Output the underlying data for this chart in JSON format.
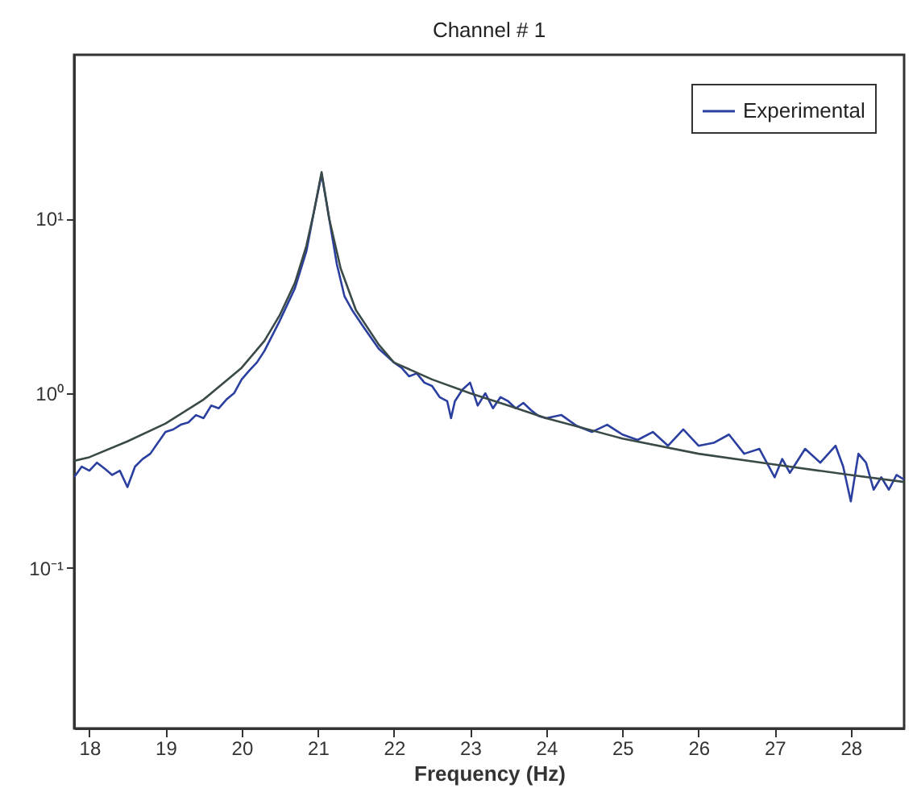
{
  "chart_data": {
    "type": "line",
    "title": "Channel # 1",
    "xlabel": "Frequency (Hz)",
    "log": "y",
    "grid": false,
    "legend": "top right",
    "xlim": [
      17.8,
      28.7
    ],
    "xticks": [
      18,
      19,
      20,
      21,
      22,
      23,
      24,
      25,
      26,
      27,
      28
    ],
    "ylim": [
      0.012,
      87
    ],
    "yticks": [
      {
        "value": 0.1,
        "label": "10⁻¹"
      },
      {
        "value": 1,
        "label": "10⁰"
      },
      {
        "value": 10,
        "label": "10¹"
      }
    ],
    "series": [
      {
        "name": "Experimental",
        "color": "#2b3fa0",
        "x": [
          17.8,
          17.9,
          18.0,
          18.1,
          18.2,
          18.3,
          18.4,
          18.5,
          18.6,
          18.7,
          18.8,
          18.9,
          19.0,
          19.1,
          19.2,
          19.3,
          19.4,
          19.5,
          19.6,
          19.7,
          19.8,
          19.9,
          20.0,
          20.1,
          20.2,
          20.3,
          20.5,
          20.7,
          20.85,
          20.95,
          21.05,
          21.15,
          21.25,
          21.35,
          21.45,
          21.6,
          21.8,
          22.0,
          22.1,
          22.2,
          22.3,
          22.4,
          22.5,
          22.6,
          22.7,
          22.75,
          22.8,
          22.9,
          23.0,
          23.1,
          23.2,
          23.3,
          23.4,
          23.5,
          23.6,
          23.7,
          23.8,
          23.9,
          24.0,
          24.2,
          24.4,
          24.6,
          24.8,
          25.0,
          25.2,
          25.4,
          25.6,
          25.8,
          26.0,
          26.2,
          26.4,
          26.6,
          26.8,
          27.0,
          27.1,
          27.2,
          27.4,
          27.6,
          27.8,
          27.9,
          28.0,
          28.1,
          28.2,
          28.3,
          28.4,
          28.5,
          28.6,
          28.7
        ],
        "values": [
          0.33,
          0.38,
          0.36,
          0.4,
          0.37,
          0.34,
          0.36,
          0.29,
          0.38,
          0.42,
          0.45,
          0.52,
          0.6,
          0.62,
          0.66,
          0.68,
          0.75,
          0.72,
          0.85,
          0.82,
          0.92,
          1.0,
          1.2,
          1.35,
          1.5,
          1.75,
          2.6,
          4.0,
          6.5,
          11,
          18,
          10,
          5.5,
          3.6,
          3.0,
          2.4,
          1.8,
          1.5,
          1.4,
          1.25,
          1.3,
          1.15,
          1.1,
          0.95,
          0.9,
          0.72,
          0.9,
          1.05,
          1.15,
          0.85,
          1.0,
          0.82,
          0.95,
          0.9,
          0.82,
          0.88,
          0.8,
          0.74,
          0.72,
          0.75,
          0.65,
          0.6,
          0.66,
          0.58,
          0.54,
          0.6,
          0.5,
          0.62,
          0.5,
          0.52,
          0.58,
          0.45,
          0.48,
          0.33,
          0.42,
          0.35,
          0.48,
          0.4,
          0.5,
          0.38,
          0.24,
          0.45,
          0.4,
          0.28,
          0.33,
          0.28,
          0.34,
          0.32
        ]
      },
      {
        "color": "#3a4a48",
        "x": [
          17.8,
          18,
          18.5,
          19,
          19.5,
          20,
          20.3,
          20.5,
          20.7,
          20.85,
          20.95,
          21.05,
          21.15,
          21.3,
          21.5,
          21.8,
          22,
          22.5,
          23,
          23.5,
          24,
          25,
          26,
          27,
          28,
          28.7
        ],
        "values": [
          0.41,
          0.43,
          0.53,
          0.67,
          0.92,
          1.4,
          2.0,
          2.8,
          4.3,
          7,
          11,
          18.5,
          10,
          5.2,
          3.0,
          1.9,
          1.5,
          1.2,
          1.0,
          0.85,
          0.72,
          0.55,
          0.45,
          0.39,
          0.34,
          0.31
        ]
      }
    ]
  }
}
